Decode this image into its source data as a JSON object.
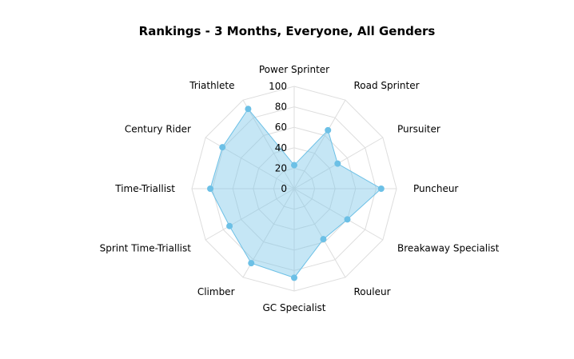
{
  "chart_data": {
    "type": "radar",
    "title": "Rankings - 3 Months, Everyone, All Genders",
    "categories": [
      "Power Sprinter",
      "Road Sprinter",
      "Pursuiter",
      "Puncheur",
      "Breakaway Specialist",
      "Rouleur",
      "GC Specialist",
      "Climber",
      "Sprint Time-Triallist",
      "Time-Triallist",
      "Century Rider",
      "Triathlete"
    ],
    "series": [
      {
        "values": [
          23,
          66,
          49,
          85,
          60,
          57,
          87,
          84,
          73,
          82,
          81,
          90
        ]
      }
    ],
    "rlim": [
      0,
      100
    ],
    "radial_ticks": [
      0,
      20,
      40,
      60,
      80,
      100
    ],
    "grid": true,
    "colors": {
      "fill": "#7ec8e8",
      "stroke": "#6cc0e6",
      "marker": "#6cc0e6",
      "grid": "#dddddd",
      "text": "#000000"
    }
  }
}
